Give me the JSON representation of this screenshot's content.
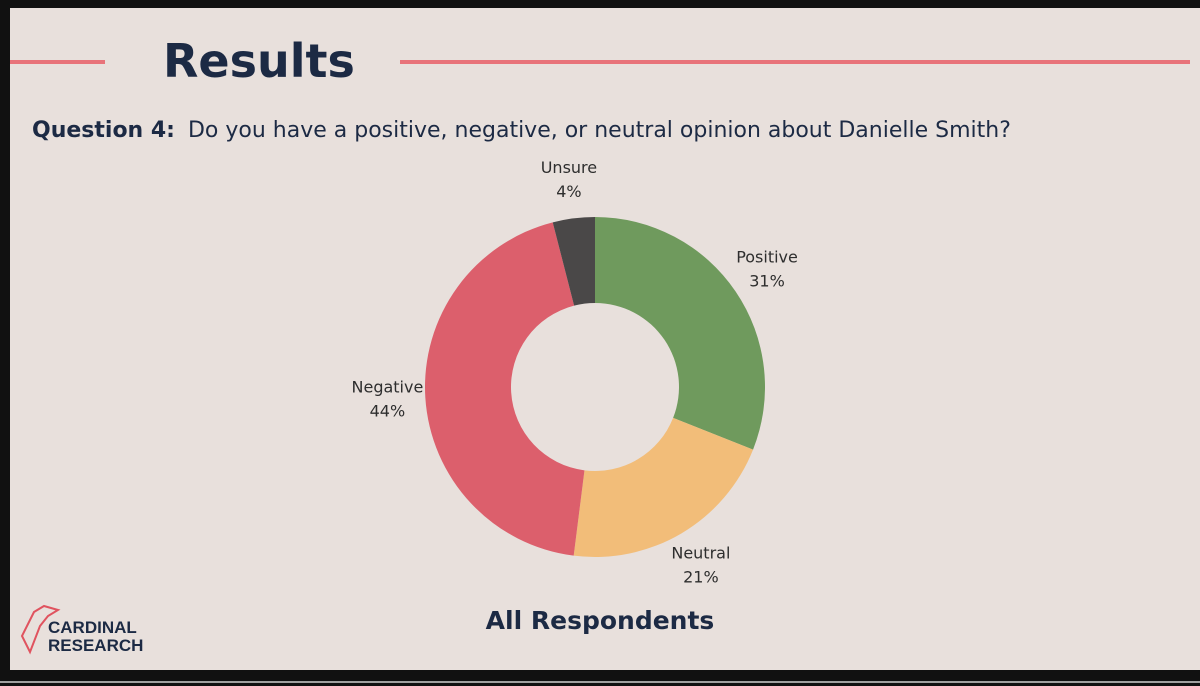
{
  "header": {
    "title": "Results"
  },
  "question": {
    "label": "Question 4:",
    "text": "Do you have a positive, negative, or neutral opinion about Danielle Smith?"
  },
  "logo": {
    "line1": "CARDINAL",
    "line2": "RESEARCH"
  },
  "chart_data": {
    "type": "donut",
    "subtitle": "All Respondents",
    "categories": [
      "Positive",
      "Neutral",
      "Negative",
      "Unsure"
    ],
    "values": [
      31,
      21,
      44,
      4
    ],
    "value_labels": [
      "31%",
      "21%",
      "44%",
      "4%"
    ],
    "colors": [
      "#6f9a5d",
      "#f2bd79",
      "#dc5f6c",
      "#4a4848"
    ]
  }
}
